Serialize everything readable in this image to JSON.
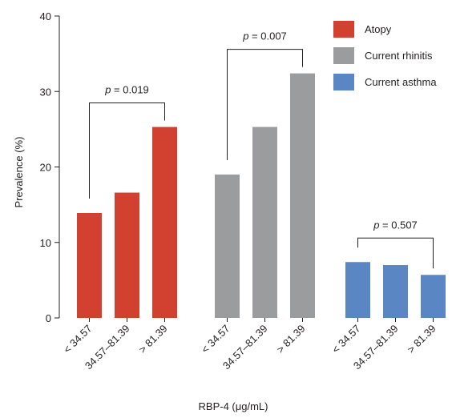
{
  "chart_data": {
    "type": "bar",
    "xlabel": "RBP-4 (μg/mL)",
    "ylabel": "Prevalence (%)",
    "ylim": [
      0,
      40
    ],
    "yticks": [
      0,
      10,
      20,
      30,
      40
    ],
    "grid": false,
    "legend_position": "top-right",
    "categories": [
      "< 34.57",
      "34.57–81.39",
      "> 81.39"
    ],
    "series": [
      {
        "name": "Atopy",
        "color": "#d2402f",
        "values": [
          13.9,
          16.6,
          25.3
        ],
        "p_label": "p = 0.019"
      },
      {
        "name": "Current rhinitis",
        "color": "#9b9c9e",
        "values": [
          19.0,
          25.3,
          32.4
        ],
        "p_label": "p = 0.007"
      },
      {
        "name": "Current asthma",
        "color": "#5b86c4",
        "values": [
          7.4,
          7.0,
          5.7
        ],
        "p_label": "p = 0.507"
      }
    ]
  }
}
